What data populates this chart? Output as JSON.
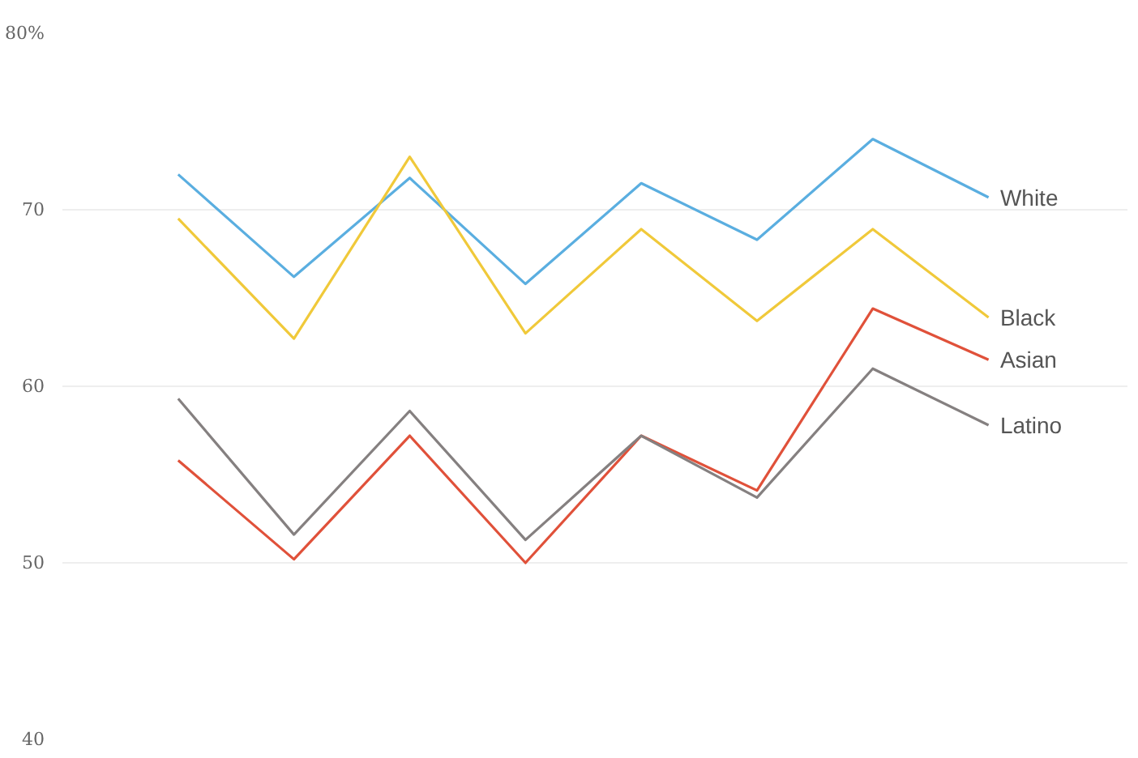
{
  "chart_data": {
    "type": "line",
    "categories": [
      null,
      null,
      null,
      null,
      null,
      null,
      null,
      null
    ],
    "series": [
      {
        "name": "White",
        "color": "#5aaee0",
        "values": [
          72.0,
          66.2,
          71.8,
          65.8,
          71.5,
          68.3,
          74.0,
          70.7
        ]
      },
      {
        "name": "Black",
        "color": "#f0c93a",
        "values": [
          69.5,
          62.7,
          73.0,
          63.0,
          68.9,
          63.7,
          68.9,
          63.9
        ]
      },
      {
        "name": "Asian",
        "color": "#e0513a",
        "values": [
          55.8,
          50.2,
          57.2,
          50.0,
          57.2,
          54.1,
          64.4,
          61.5
        ]
      },
      {
        "name": "Latino",
        "color": "#858080",
        "values": [
          59.3,
          51.6,
          58.6,
          51.3,
          57.2,
          53.7,
          61.0,
          57.8
        ]
      }
    ],
    "ylim": [
      40,
      80
    ],
    "yticks": [
      40,
      50,
      60,
      70,
      {
        "value": 80,
        "label": "80%"
      }
    ],
    "grid": "y",
    "marker": "none",
    "line_style": "solid"
  }
}
